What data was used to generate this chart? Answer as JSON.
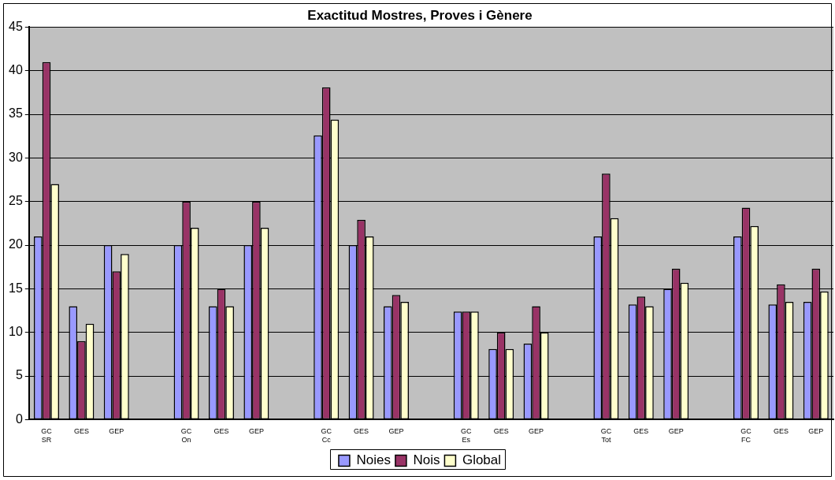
{
  "chart_data": {
    "type": "bar",
    "title": "Exactitud Mostres, Proves i Gènere",
    "categories": [
      "GC\nSR",
      "GES",
      "GEP",
      null,
      "GC\nOn",
      "GES",
      "GEP",
      null,
      "GC\nCc",
      "GES",
      "GEP",
      null,
      "GC\nEs",
      "GES",
      "GEP",
      null,
      "GC\nTot",
      "GES",
      "GEP",
      null,
      "GC\nFC",
      "GES",
      "GEP"
    ],
    "series": [
      {
        "name": "Noies",
        "color": "#9999ff",
        "values": [
          21,
          13,
          20,
          null,
          20,
          13,
          20,
          null,
          32.6,
          20,
          13,
          null,
          12.4,
          8.1,
          8.7,
          null,
          21,
          13.2,
          15,
          null,
          21,
          13.2,
          13.5
        ]
      },
      {
        "name": "Nois",
        "color": "#993366",
        "values": [
          41,
          9,
          17,
          null,
          25,
          15,
          25,
          null,
          38.1,
          22.9,
          14.3,
          null,
          12.4,
          10,
          13,
          null,
          28.2,
          14.1,
          17.3,
          null,
          24.3,
          15.5,
          17.3
        ]
      },
      {
        "name": "Global",
        "color": "#ffffcc",
        "values": [
          27,
          11,
          19,
          null,
          22,
          13,
          22,
          null,
          34.4,
          21,
          13.5,
          null,
          12.4,
          8.1,
          10,
          null,
          23.1,
          13,
          15.7,
          null,
          22.2,
          13.5,
          14.7
        ]
      }
    ],
    "ylim": [
      0,
      45
    ],
    "yticks": [
      0,
      5,
      10,
      15,
      20,
      25,
      30,
      35,
      40,
      45
    ],
    "grid": "y",
    "legend": "bottom"
  }
}
